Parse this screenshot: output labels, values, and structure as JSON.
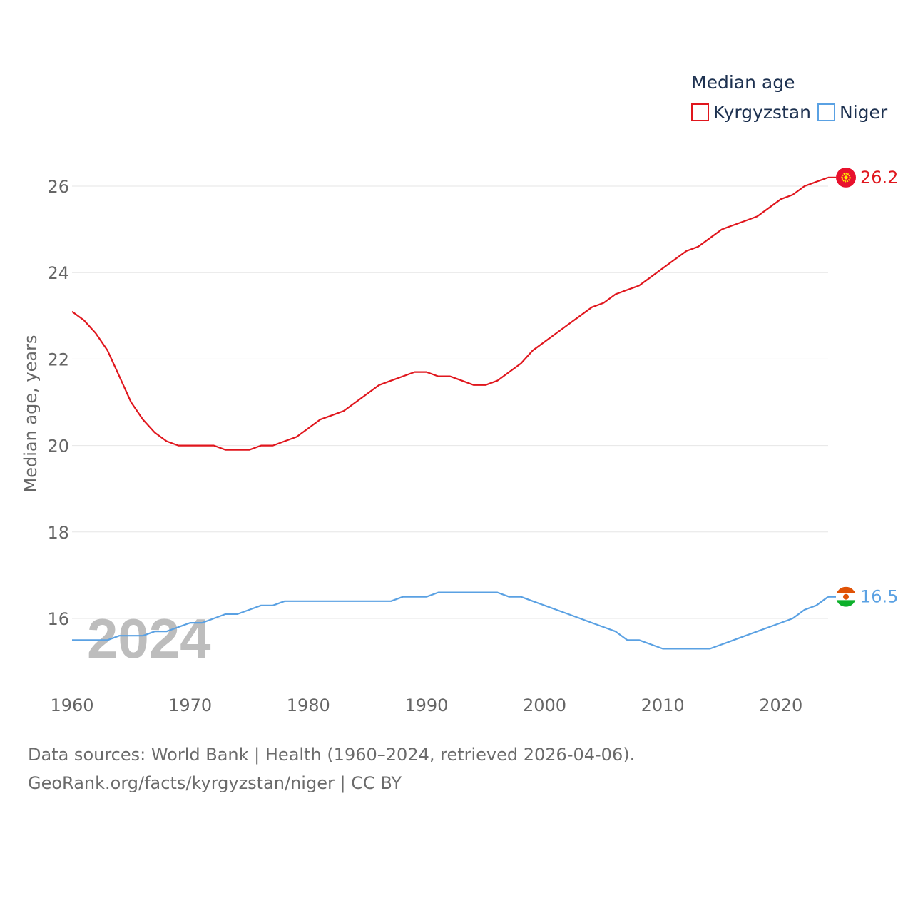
{
  "chart_data": {
    "type": "line",
    "legend_title": "Median age",
    "ylabel": "Median age, years",
    "xlabel": "",
    "xlim": [
      1960,
      2024
    ],
    "ylim": [
      14.6,
      27.2
    ],
    "yticks": [
      16,
      18,
      20,
      22,
      24,
      26
    ],
    "xticks": [
      1960,
      1970,
      1980,
      1990,
      2000,
      2010,
      2020
    ],
    "year_label": "2024",
    "legend_position": "top-right",
    "x": [
      1960,
      1961,
      1962,
      1963,
      1964,
      1965,
      1966,
      1967,
      1968,
      1969,
      1970,
      1971,
      1972,
      1973,
      1974,
      1975,
      1976,
      1977,
      1978,
      1979,
      1980,
      1981,
      1982,
      1983,
      1984,
      1985,
      1986,
      1987,
      1988,
      1989,
      1990,
      1991,
      1992,
      1993,
      1994,
      1995,
      1996,
      1997,
      1998,
      1999,
      2000,
      2001,
      2002,
      2003,
      2004,
      2005,
      2006,
      2007,
      2008,
      2009,
      2010,
      2011,
      2012,
      2013,
      2014,
      2015,
      2016,
      2017,
      2018,
      2019,
      2020,
      2021,
      2022,
      2023,
      2024
    ],
    "series": [
      {
        "name": "Kyrgyzstan",
        "color": "#e0161d",
        "end_label": "26.2",
        "flag_icon": "kyrgyzstan-flag-icon",
        "values": [
          23.1,
          22.9,
          22.6,
          22.2,
          21.6,
          21.0,
          20.6,
          20.3,
          20.1,
          20.0,
          20.0,
          20.0,
          20.0,
          19.9,
          19.9,
          19.9,
          20.0,
          20.0,
          20.1,
          20.2,
          20.4,
          20.6,
          20.7,
          20.8,
          21.0,
          21.2,
          21.4,
          21.5,
          21.6,
          21.7,
          21.7,
          21.6,
          21.6,
          21.5,
          21.4,
          21.4,
          21.5,
          21.7,
          21.9,
          22.2,
          22.4,
          22.6,
          22.8,
          23.0,
          23.2,
          23.3,
          23.5,
          23.6,
          23.7,
          23.9,
          24.1,
          24.3,
          24.5,
          24.6,
          24.8,
          25.0,
          25.1,
          25.2,
          25.3,
          25.5,
          25.7,
          25.8,
          26.0,
          26.1,
          26.2
        ]
      },
      {
        "name": "Niger",
        "color": "#5aa1e3",
        "end_label": "16.5",
        "flag_icon": "niger-flag-icon",
        "values": [
          15.5,
          15.5,
          15.5,
          15.5,
          15.6,
          15.6,
          15.6,
          15.7,
          15.7,
          15.8,
          15.9,
          15.9,
          16.0,
          16.1,
          16.1,
          16.2,
          16.3,
          16.3,
          16.4,
          16.4,
          16.4,
          16.4,
          16.4,
          16.4,
          16.4,
          16.4,
          16.4,
          16.4,
          16.5,
          16.5,
          16.5,
          16.6,
          16.6,
          16.6,
          16.6,
          16.6,
          16.6,
          16.5,
          16.5,
          16.4,
          16.3,
          16.2,
          16.1,
          16.0,
          15.9,
          15.8,
          15.7,
          15.5,
          15.5,
          15.4,
          15.3,
          15.3,
          15.3,
          15.3,
          15.3,
          15.4,
          15.5,
          15.6,
          15.7,
          15.8,
          15.9,
          16.0,
          16.2,
          16.3,
          16.5
        ]
      }
    ]
  },
  "footer": {
    "source_line1": "Data sources: World Bank | Health (1960–2024, retrieved 2026-04-06).",
    "source_line2": "GeoRank.org/facts/kyrgyzstan/niger | CC BY"
  }
}
